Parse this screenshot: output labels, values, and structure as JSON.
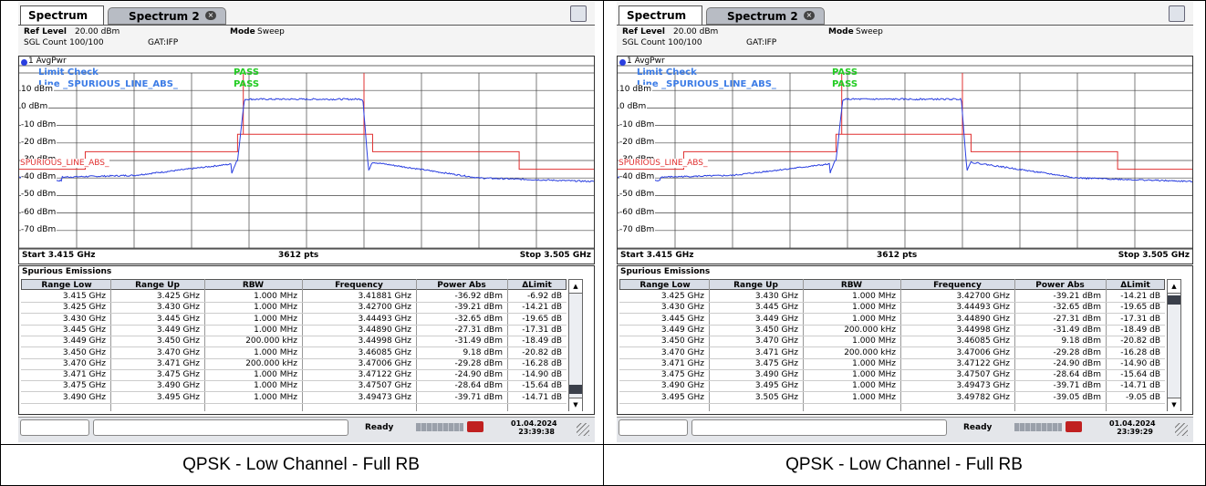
{
  "panels": [
    {
      "tabs": [
        "Spectrum",
        "Spectrum 2"
      ],
      "ref_level_label": "Ref Level",
      "ref_level": "20.00 dBm",
      "mode_label": "Mode",
      "mode": "Sweep",
      "sgl_count": "SGL Count 100/100",
      "gat": "GAT:IFP",
      "trace_label": "1 AvgPwr",
      "limit_check": "Limit Check",
      "limit_line": "Line _SPURIOUS_LINE_ABS_",
      "pass": [
        "PASS",
        "PASS"
      ],
      "limit_line_label": "SPURIOUS_LINE_ABS_",
      "yticks": [
        "10 dBm",
        "0 dBm",
        "-10 dBm",
        "-20 dBm",
        "-30 dBm",
        "-40 dBm",
        "-50 dBm",
        "-60 dBm",
        "-70 dBm"
      ],
      "start": "Start 3.415 GHz",
      "points": "3612 pts",
      "stop": "Stop 3.505 GHz",
      "table": {
        "title": "Spurious Emissions",
        "columns": [
          "Range Low",
          "Range Up",
          "RBW",
          "Frequency",
          "Power Abs",
          "ΔLimit"
        ],
        "rows": [
          [
            "3.415 GHz",
            "3.425 GHz",
            "1.000 MHz",
            "3.41881 GHz",
            "-36.92 dBm",
            "-6.92 dB"
          ],
          [
            "3.425 GHz",
            "3.430 GHz",
            "1.000 MHz",
            "3.42700 GHz",
            "-39.21 dBm",
            "-14.21 dB"
          ],
          [
            "3.430 GHz",
            "3.445 GHz",
            "1.000 MHz",
            "3.44493 GHz",
            "-32.65 dBm",
            "-19.65 dB"
          ],
          [
            "3.445 GHz",
            "3.449 GHz",
            "1.000 MHz",
            "3.44890 GHz",
            "-27.31 dBm",
            "-17.31 dB"
          ],
          [
            "3.449 GHz",
            "3.450 GHz",
            "200.000 kHz",
            "3.44998 GHz",
            "-31.49 dBm",
            "-18.49 dB"
          ],
          [
            "3.450 GHz",
            "3.470 GHz",
            "1.000 MHz",
            "3.46085 GHz",
            "9.18 dBm",
            "-20.82 dB"
          ],
          [
            "3.470 GHz",
            "3.471 GHz",
            "200.000 kHz",
            "3.47006 GHz",
            "-29.28 dBm",
            "-16.28 dB"
          ],
          [
            "3.471 GHz",
            "3.475 GHz",
            "1.000 MHz",
            "3.47122 GHz",
            "-24.90 dBm",
            "-14.90 dB"
          ],
          [
            "3.475 GHz",
            "3.490 GHz",
            "1.000 MHz",
            "3.47507 GHz",
            "-28.64 dBm",
            "-15.64 dB"
          ],
          [
            "3.490 GHz",
            "3.495 GHz",
            "1.000 MHz",
            "3.49473 GHz",
            "-39.71 dBm",
            "-14.71 dB"
          ]
        ]
      },
      "status": "Ready",
      "date": "01.04.2024",
      "time": "23:39:38",
      "caption": "QPSK - Low Channel - Full RB"
    },
    {
      "tabs": [
        "Spectrum",
        "Spectrum 2"
      ],
      "ref_level_label": "Ref Level",
      "ref_level": "20.00 dBm",
      "mode_label": "Mode",
      "mode": "Sweep",
      "sgl_count": "SGL Count 100/100",
      "gat": "GAT:IFP",
      "trace_label": "1 AvgPwr",
      "limit_check": "Limit Check",
      "limit_line": "Line _SPURIOUS_LINE_ABS_",
      "pass": [
        "PASS",
        "PASS"
      ],
      "limit_line_label": "SPURIOUS_LINE_ABS_",
      "yticks": [
        "10 dBm",
        "0 dBm",
        "-10 dBm",
        "-20 dBm",
        "-30 dBm",
        "-40 dBm",
        "-50 dBm",
        "-60 dBm",
        "-70 dBm"
      ],
      "start": "Start 3.415 GHz",
      "points": "3612 pts",
      "stop": "Stop 3.505 GHz",
      "table": {
        "title": "Spurious Emissions",
        "columns": [
          "Range Low",
          "Range Up",
          "RBW",
          "Frequency",
          "Power Abs",
          "ΔLimit"
        ],
        "rows": [
          [
            "3.425 GHz",
            "3.430 GHz",
            "1.000 MHz",
            "3.42700 GHz",
            "-39.21 dBm",
            "-14.21 dB"
          ],
          [
            "3.430 GHz",
            "3.445 GHz",
            "1.000 MHz",
            "3.44493 GHz",
            "-32.65 dBm",
            "-19.65 dB"
          ],
          [
            "3.445 GHz",
            "3.449 GHz",
            "1.000 MHz",
            "3.44890 GHz",
            "-27.31 dBm",
            "-17.31 dB"
          ],
          [
            "3.449 GHz",
            "3.450 GHz",
            "200.000 kHz",
            "3.44998 GHz",
            "-31.49 dBm",
            "-18.49 dB"
          ],
          [
            "3.450 GHz",
            "3.470 GHz",
            "1.000 MHz",
            "3.46085 GHz",
            "9.18 dBm",
            "-20.82 dB"
          ],
          [
            "3.470 GHz",
            "3.471 GHz",
            "200.000 kHz",
            "3.47006 GHz",
            "-29.28 dBm",
            "-16.28 dB"
          ],
          [
            "3.471 GHz",
            "3.475 GHz",
            "1.000 MHz",
            "3.47122 GHz",
            "-24.90 dBm",
            "-14.90 dB"
          ],
          [
            "3.475 GHz",
            "3.490 GHz",
            "1.000 MHz",
            "3.47507 GHz",
            "-28.64 dBm",
            "-15.64 dB"
          ],
          [
            "3.490 GHz",
            "3.495 GHz",
            "1.000 MHz",
            "3.49473 GHz",
            "-39.71 dBm",
            "-14.71 dB"
          ],
          [
            "3.495 GHz",
            "3.505 GHz",
            "1.000 MHz",
            "3.49782 GHz",
            "-39.05 dBm",
            "-9.05 dB"
          ]
        ]
      },
      "status": "Ready",
      "date": "01.04.2024",
      "time": "23:39:29",
      "caption": "QPSK - Low Channel - Full RB"
    }
  ]
}
